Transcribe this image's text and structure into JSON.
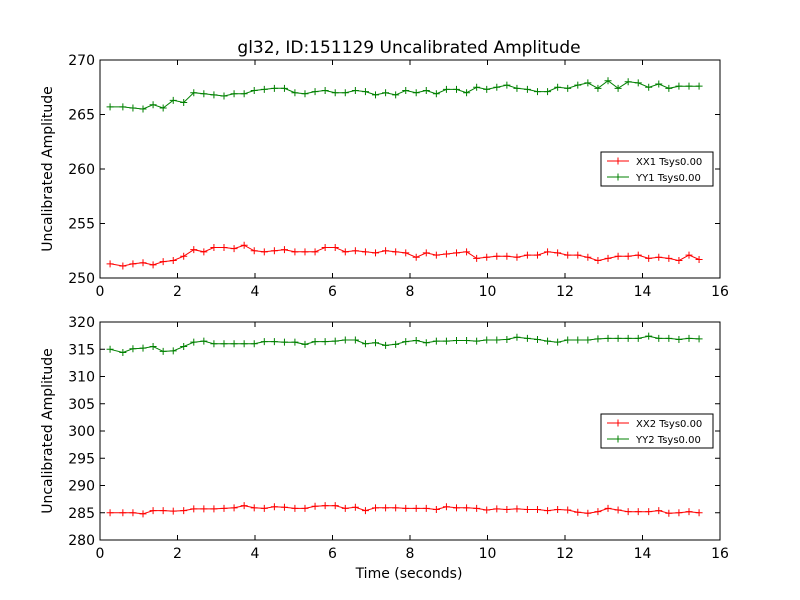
{
  "figure": {
    "title": "gl32, ID:151129 Uncalibrated Amplitude",
    "xlabel": "Time (seconds)"
  },
  "chart_data": [
    {
      "type": "line",
      "title": "gl32, ID:151129 Uncalibrated Amplitude",
      "xlabel": "",
      "ylabel": "Uncalibrated Amplitude",
      "xlim": [
        0,
        16
      ],
      "ylim": [
        250,
        270
      ],
      "xticks": [
        "0",
        "2",
        "4",
        "6",
        "8",
        "10",
        "12",
        "14",
        "16"
      ],
      "yticks": [
        "250",
        "255",
        "260",
        "265",
        "270"
      ],
      "legend_position": "center-right",
      "x": [
        0.26,
        0.59,
        0.85,
        1.11,
        1.37,
        1.63,
        1.89,
        2.16,
        2.42,
        2.68,
        2.94,
        3.2,
        3.46,
        3.72,
        3.98,
        4.24,
        4.5,
        4.76,
        5.03,
        5.29,
        5.55,
        5.81,
        6.07,
        6.33,
        6.59,
        6.85,
        7.11,
        7.37,
        7.63,
        7.89,
        8.16,
        8.42,
        8.68,
        8.94,
        9.2,
        9.46,
        9.72,
        9.98,
        10.24,
        10.5,
        10.76,
        11.03,
        11.29,
        11.55,
        11.81,
        12.07,
        12.33,
        12.59,
        12.85,
        13.11,
        13.37,
        13.63,
        13.89,
        14.16,
        14.42,
        14.68,
        14.94,
        15.2,
        15.46
      ],
      "series": [
        {
          "name": "XX1 Tsys0.00",
          "color": "#ff0000",
          "values": [
            251.3,
            251.1,
            251.3,
            251.4,
            251.2,
            251.5,
            251.6,
            252.0,
            252.6,
            252.4,
            252.8,
            252.8,
            252.7,
            253.0,
            252.5,
            252.4,
            252.5,
            252.6,
            252.4,
            252.4,
            252.4,
            252.8,
            252.8,
            252.4,
            252.5,
            252.4,
            252.3,
            252.5,
            252.4,
            252.3,
            251.9,
            252.3,
            252.1,
            252.2,
            252.3,
            252.4,
            251.8,
            251.9,
            252.0,
            252.0,
            251.9,
            252.1,
            252.1,
            252.4,
            252.3,
            252.1,
            252.1,
            251.9,
            251.6,
            251.8,
            252.0,
            252.0,
            252.1,
            251.8,
            251.9,
            251.8,
            251.6,
            252.1,
            251.7
          ]
        },
        {
          "name": "YY1 Tsys0.00",
          "color": "#008000",
          "values": [
            265.7,
            265.7,
            265.6,
            265.5,
            265.9,
            265.6,
            266.3,
            266.1,
            267.0,
            266.9,
            266.8,
            266.7,
            266.9,
            266.9,
            267.2,
            267.3,
            267.4,
            267.4,
            267.0,
            266.9,
            267.1,
            267.2,
            267.0,
            267.0,
            267.2,
            267.1,
            266.8,
            267.0,
            266.8,
            267.2,
            267.0,
            267.2,
            266.9,
            267.3,
            267.3,
            267.0,
            267.5,
            267.3,
            267.5,
            267.7,
            267.4,
            267.3,
            267.1,
            267.1,
            267.5,
            267.4,
            267.7,
            267.9,
            267.4,
            268.1,
            267.4,
            268.0,
            267.9,
            267.5,
            267.8,
            267.4,
            267.6,
            267.6,
            267.6
          ]
        }
      ]
    },
    {
      "type": "line",
      "title": "",
      "xlabel": "Time (seconds)",
      "ylabel": "Uncalibrated Amplitude",
      "xlim": [
        0,
        16
      ],
      "ylim": [
        280,
        320
      ],
      "xticks": [
        "0",
        "2",
        "4",
        "6",
        "8",
        "10",
        "12",
        "14",
        "16"
      ],
      "yticks": [
        "280",
        "285",
        "290",
        "295",
        "300",
        "305",
        "310",
        "315",
        "320"
      ],
      "legend_position": "center-right",
      "x": [
        0.26,
        0.59,
        0.85,
        1.11,
        1.37,
        1.63,
        1.89,
        2.16,
        2.42,
        2.68,
        2.94,
        3.2,
        3.46,
        3.72,
        3.98,
        4.24,
        4.5,
        4.76,
        5.03,
        5.29,
        5.55,
        5.81,
        6.07,
        6.33,
        6.59,
        6.85,
        7.11,
        7.37,
        7.63,
        7.89,
        8.16,
        8.42,
        8.68,
        8.94,
        9.2,
        9.46,
        9.72,
        9.98,
        10.24,
        10.5,
        10.76,
        11.03,
        11.29,
        11.55,
        11.81,
        12.07,
        12.33,
        12.59,
        12.85,
        13.11,
        13.37,
        13.63,
        13.89,
        14.16,
        14.42,
        14.68,
        14.94,
        15.2,
        15.46
      ],
      "series": [
        {
          "name": "XX2 Tsys0.00",
          "color": "#ff0000",
          "values": [
            285.0,
            285.0,
            285.0,
            284.8,
            285.4,
            285.4,
            285.3,
            285.4,
            285.7,
            285.7,
            285.7,
            285.8,
            285.9,
            286.3,
            285.9,
            285.8,
            286.1,
            286.0,
            285.8,
            285.8,
            286.2,
            286.3,
            286.3,
            285.8,
            286.0,
            285.4,
            285.9,
            285.9,
            285.9,
            285.8,
            285.8,
            285.8,
            285.6,
            286.1,
            285.9,
            285.9,
            285.8,
            285.5,
            285.7,
            285.6,
            285.7,
            285.6,
            285.6,
            285.4,
            285.6,
            285.5,
            285.1,
            284.9,
            285.2,
            285.8,
            285.5,
            285.2,
            285.2,
            285.2,
            285.4,
            284.9,
            285.0,
            285.2,
            285.0
          ]
        },
        {
          "name": "YY2 Tsys0.00",
          "color": "#008000",
          "values": [
            315.0,
            314.4,
            315.1,
            315.2,
            315.5,
            314.6,
            314.7,
            315.5,
            316.3,
            316.5,
            316.0,
            316.0,
            316.0,
            316.0,
            316.0,
            316.4,
            316.4,
            316.3,
            316.3,
            315.9,
            316.4,
            316.4,
            316.5,
            316.7,
            316.7,
            316.0,
            316.2,
            315.7,
            315.9,
            316.4,
            316.6,
            316.2,
            316.5,
            316.5,
            316.6,
            316.6,
            316.5,
            316.7,
            316.7,
            316.8,
            317.2,
            317.0,
            316.8,
            316.5,
            316.3,
            316.7,
            316.7,
            316.7,
            316.9,
            317.0,
            317.0,
            317.0,
            317.0,
            317.4,
            317.0,
            317.0,
            316.8,
            317.0,
            316.9
          ]
        }
      ]
    }
  ]
}
